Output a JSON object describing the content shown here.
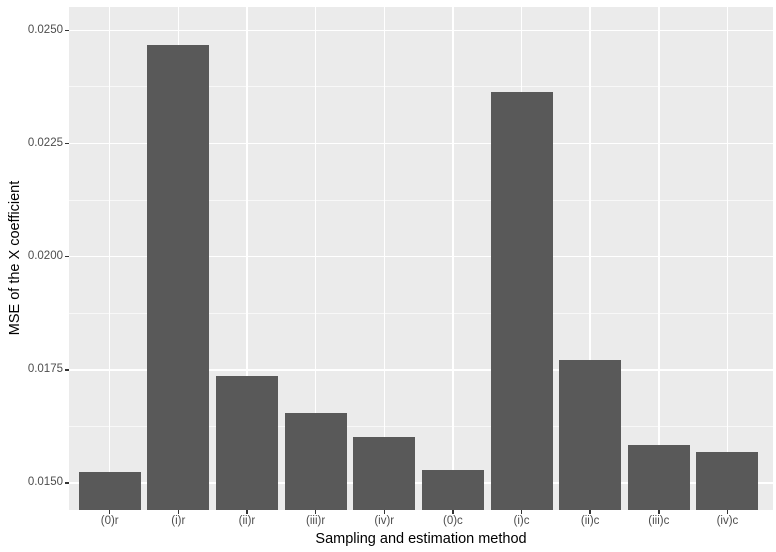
{
  "chart_data": {
    "type": "bar",
    "title": "",
    "xlabel": "Sampling and estimation method",
    "ylabel": "MSE of the X coefficient",
    "categories": [
      "(0)r",
      "(i)r",
      "(ii)r",
      "(iii)r",
      "(iv)r",
      "(0)c",
      "(i)c",
      "(ii)c",
      "(iii)c",
      "(iv)c"
    ],
    "values": [
      0.01525,
      0.02467,
      0.01736,
      0.01654,
      0.01601,
      0.01528,
      0.02364,
      0.01772,
      0.01584,
      0.01569
    ],
    "y_ticks": [
      0.015,
      0.0175,
      0.02,
      0.0225,
      0.025
    ],
    "y_tick_labels": [
      "0.0150",
      "0.0175",
      "0.0200",
      "0.0225",
      "0.0250"
    ],
    "y_minor_ticks": [
      0.01625,
      0.01875,
      0.02125,
      0.02375
    ],
    "ylim_display": [
      0.014403,
      0.025515
    ],
    "grid": true,
    "legend": false,
    "bar_cut_at_panel_bottom": true,
    "colors": {
      "bar_fill": "#595959",
      "panel_background": "#EBEBEB",
      "gridline": "#FFFFFF",
      "tick_text": "#4D4D4D",
      "axis_title_text": "#000000",
      "tick_mark": "#333333",
      "outer_background": "#FFFFFF"
    }
  }
}
